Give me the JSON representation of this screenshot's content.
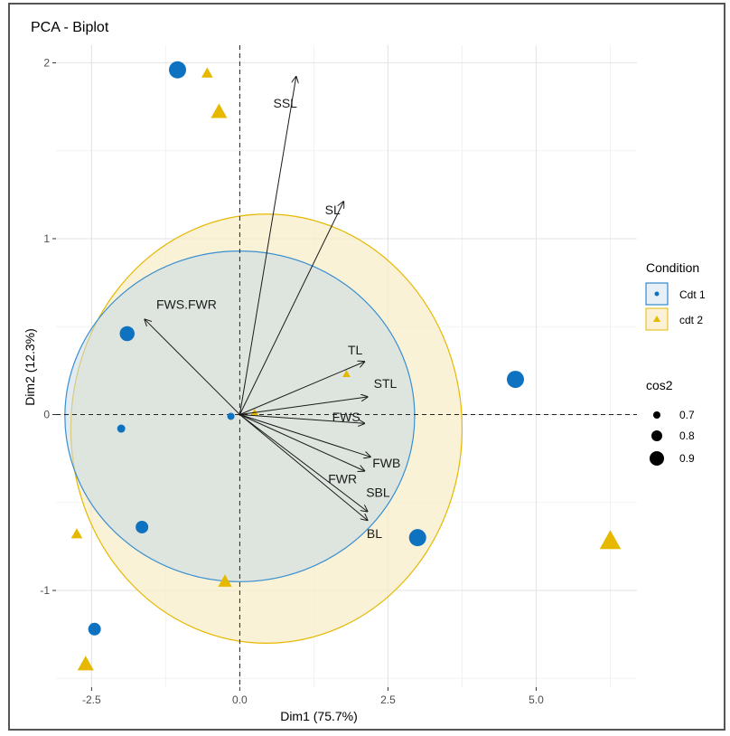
{
  "chart_data": {
    "type": "scatter",
    "title": "PCA - Biplot",
    "xlabel": "Dim1 (75.7%)",
    "ylabel": "Dim2 (12.3%)",
    "xlim": [
      -3.1,
      6.7
    ],
    "ylim": [
      -1.55,
      2.1
    ],
    "x_ticks": [
      -2.5,
      0.0,
      2.5,
      5.0
    ],
    "x_tick_labels": [
      "-2.5",
      "0.0",
      "2.5",
      "5.0"
    ],
    "y_ticks": [
      -1,
      0,
      1,
      2
    ],
    "y_tick_labels": [
      "-1",
      "0",
      "1",
      "2"
    ],
    "grid": true,
    "legend_position": "right",
    "colors": {
      "cdt1": "#0f72c0",
      "cdt2": "#e6b800",
      "arrow": "#1a1a1a"
    },
    "series": [
      {
        "name": "Cdt 1",
        "marker": "circle",
        "color": "#0f72c0",
        "points": [
          {
            "x": -1.05,
            "y": 1.96,
            "cos2": 0.9
          },
          {
            "x": -1.9,
            "y": 0.46,
            "cos2": 0.85
          },
          {
            "x": -2.0,
            "y": -0.08,
            "cos2": 0.7
          },
          {
            "x": -1.65,
            "y": -0.64,
            "cos2": 0.8
          },
          {
            "x": -2.45,
            "y": -1.22,
            "cos2": 0.8
          },
          {
            "x": 4.65,
            "y": 0.2,
            "cos2": 0.9
          },
          {
            "x": 3.0,
            "y": -0.7,
            "cos2": 0.9
          },
          {
            "x": -0.15,
            "y": -0.01,
            "cos2": 0.68
          }
        ],
        "ellipse": {
          "cx": 2.0,
          "cy": -0.01,
          "rx": 2.95,
          "ry": 0.94
        }
      },
      {
        "name": "cdt 2",
        "marker": "triangle",
        "color": "#e6b800",
        "points": [
          {
            "x": -0.55,
            "y": 1.94,
            "cos2": 0.75
          },
          {
            "x": -0.35,
            "y": 1.72,
            "cos2": 0.85
          },
          {
            "x": -2.75,
            "y": -0.68,
            "cos2": 0.75
          },
          {
            "x": -0.25,
            "y": -0.95,
            "cos2": 0.8
          },
          {
            "x": -2.6,
            "y": -1.42,
            "cos2": 0.85
          },
          {
            "x": 6.25,
            "y": -0.72,
            "cos2": 0.95
          },
          {
            "x": 1.8,
            "y": 0.23,
            "cos2": 0.68
          },
          {
            "x": 0.25,
            "y": 0.01,
            "cos2": 0.68
          }
        ],
        "ellipse": {
          "cx": 2.45,
          "cy": -0.08,
          "rx": 3.3,
          "ry": 1.22
        }
      }
    ],
    "variables": [
      {
        "name": "SSL",
        "x": 0.95,
        "y": 1.92
      },
      {
        "name": "SL",
        "x": 1.75,
        "y": 1.21
      },
      {
        "name": "FWS.FWR",
        "x": -1.6,
        "y": 0.54
      },
      {
        "name": "TL",
        "x": 2.1,
        "y": 0.3
      },
      {
        "name": "STL",
        "x": 2.15,
        "y": 0.1
      },
      {
        "name": "FWS",
        "x": 2.1,
        "y": -0.05
      },
      {
        "name": "FWB",
        "x": 2.2,
        "y": -0.24
      },
      {
        "name": "FWR",
        "x": 2.1,
        "y": -0.32
      },
      {
        "name": "SBL",
        "x": 2.15,
        "y": -0.55
      },
      {
        "name": "BL",
        "x": 2.15,
        "y": -0.6
      }
    ],
    "legend": {
      "condition_title": "Condition",
      "condition_items": [
        "Cdt 1",
        "cdt 2"
      ],
      "size_title": "cos2",
      "size_items": [
        "0.7",
        "0.8",
        "0.9"
      ]
    }
  }
}
